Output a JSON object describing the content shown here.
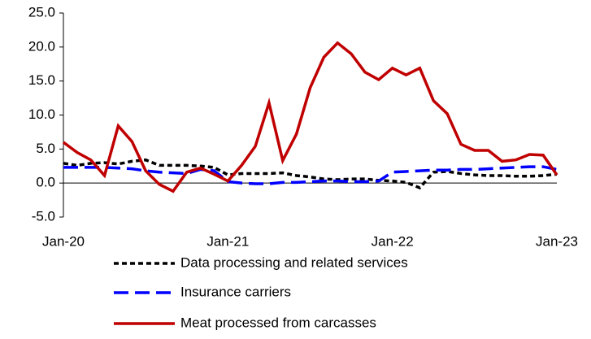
{
  "chart_data": {
    "type": "line",
    "categories": [
      "Jan-20",
      null,
      null,
      null,
      null,
      null,
      null,
      null,
      null,
      null,
      null,
      null,
      "Jan-21",
      null,
      null,
      null,
      null,
      null,
      null,
      null,
      null,
      null,
      null,
      null,
      "Jan-22",
      null,
      null,
      null,
      null,
      null,
      null,
      null,
      null,
      null,
      null,
      null,
      "Jan-23"
    ],
    "series": [
      {
        "name": "Data processing and related services",
        "color": "#000000",
        "dash": "short",
        "values": [
          2.9,
          2.6,
          2.9,
          3.0,
          2.8,
          3.2,
          3.4,
          2.6,
          2.6,
          2.6,
          2.5,
          2.3,
          1.2,
          1.4,
          1.4,
          1.4,
          1.5,
          1.1,
          0.9,
          0.6,
          0.5,
          0.6,
          0.6,
          0.4,
          0.3,
          0.1,
          -0.7,
          1.6,
          1.7,
          1.4,
          1.2,
          1.1,
          1.1,
          1.0,
          1.0,
          1.1,
          1.3
        ]
      },
      {
        "name": "Insurance carriers",
        "color": "#0000ff",
        "dash": "long",
        "values": [
          2.3,
          2.3,
          2.3,
          2.3,
          2.2,
          2.1,
          1.8,
          1.6,
          1.5,
          1.4,
          2.0,
          1.8,
          0.2,
          0.0,
          -0.1,
          -0.1,
          0.1,
          0.1,
          0.2,
          0.3,
          0.3,
          0.2,
          0.2,
          0.3,
          1.6,
          1.7,
          1.8,
          1.9,
          1.9,
          2.0,
          2.0,
          2.1,
          2.2,
          2.3,
          2.4,
          2.4,
          2.0
        ]
      },
      {
        "name": "Meat processed from carcasses",
        "color": "#c00000",
        "dash": "solid",
        "values": [
          6.0,
          4.5,
          3.4,
          1.1,
          8.4,
          6.1,
          1.8,
          -0.2,
          -1.2,
          1.6,
          2.2,
          1.3,
          0.3,
          2.6,
          5.4,
          11.8,
          3.3,
          7.2,
          14.0,
          18.5,
          20.6,
          19.0,
          16.3,
          15.2,
          16.9,
          15.9,
          16.9,
          12.1,
          10.2,
          5.7,
          4.8,
          4.8,
          3.2,
          3.4,
          4.2,
          4.1,
          1.2
        ]
      }
    ],
    "ylim": [
      -5,
      25
    ],
    "yticks": [
      {
        "value": -5,
        "label": "-5.0"
      },
      {
        "value": 0,
        "label": "0.0"
      },
      {
        "value": 5,
        "label": "5.0"
      },
      {
        "value": 10,
        "label": "10.0"
      },
      {
        "value": 15,
        "label": "15.0"
      },
      {
        "value": 20,
        "label": "20.0"
      },
      {
        "value": 25,
        "label": "25.0"
      }
    ],
    "grid": false,
    "legend": "bottom"
  }
}
